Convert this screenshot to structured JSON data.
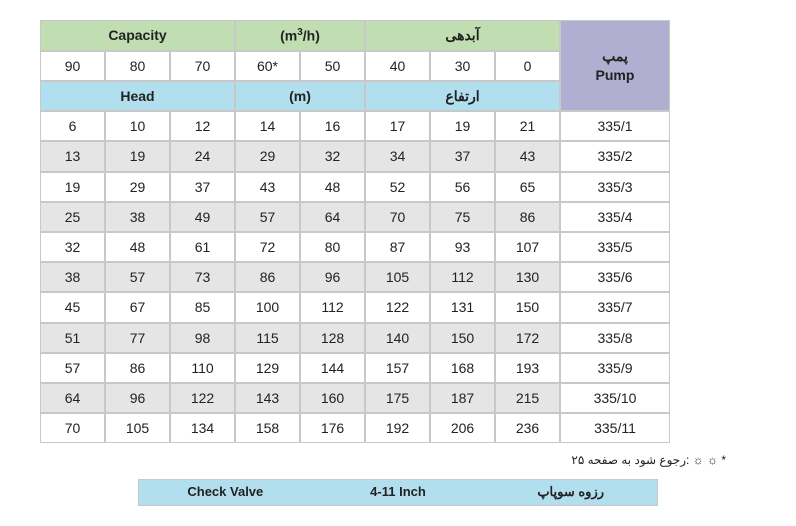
{
  "headers": {
    "capacity_en": "Capacity",
    "capacity_unit": "(m³/h)",
    "capacity_fa": "آبدهی",
    "head_en": "Head",
    "head_unit": "(m)",
    "head_fa": "ارتفاع",
    "pump_fa": "پمپ",
    "pump_en": "Pump"
  },
  "capacity_cols": [
    "90",
    "80",
    "70",
    "60*",
    "50",
    "40",
    "30",
    "0"
  ],
  "rows": [
    {
      "vals": [
        "6",
        "10",
        "12",
        "14",
        "16",
        "17",
        "19",
        "21"
      ],
      "pump": "335/1"
    },
    {
      "vals": [
        "13",
        "19",
        "24",
        "29",
        "32",
        "34",
        "37",
        "43"
      ],
      "pump": "335/2"
    },
    {
      "vals": [
        "19",
        "29",
        "37",
        "43",
        "48",
        "52",
        "56",
        "65"
      ],
      "pump": "335/3"
    },
    {
      "vals": [
        "25",
        "38",
        "49",
        "57",
        "64",
        "70",
        "75",
        "86"
      ],
      "pump": "335/4"
    },
    {
      "vals": [
        "32",
        "48",
        "61",
        "72",
        "80",
        "87",
        "93",
        "107"
      ],
      "pump": "335/5"
    },
    {
      "vals": [
        "38",
        "57",
        "73",
        "86",
        "96",
        "105",
        "112",
        "130"
      ],
      "pump": "335/6"
    },
    {
      "vals": [
        "45",
        "67",
        "85",
        "100",
        "112",
        "122",
        "131",
        "150"
      ],
      "pump": "335/7"
    },
    {
      "vals": [
        "51",
        "77",
        "98",
        "115",
        "128",
        "140",
        "150",
        "172"
      ],
      "pump": "335/8"
    },
    {
      "vals": [
        "57",
        "86",
        "110",
        "129",
        "144",
        "157",
        "168",
        "193"
      ],
      "pump": "335/9"
    },
    {
      "vals": [
        "64",
        "96",
        "122",
        "143",
        "160",
        "175",
        "187",
        "215"
      ],
      "pump": "335/10"
    },
    {
      "vals": [
        "70",
        "105",
        "134",
        "158",
        "176",
        "192",
        "206",
        "236"
      ],
      "pump": "335/11"
    }
  ],
  "footnote": "* ☼ ☼ :رجوع شود به صفحه ۲۵",
  "bottom_bar": {
    "left": "Check Valve",
    "mid": "4-11 Inch",
    "right": "رزوه سوپاپ"
  },
  "colors": {
    "capacity_bg": "#c0deb1",
    "head_bg": "#b2dfee",
    "pump_bg": "#b0afd1",
    "alt_row_bg": "#e5e5e5",
    "border": "#c8c8c8"
  }
}
